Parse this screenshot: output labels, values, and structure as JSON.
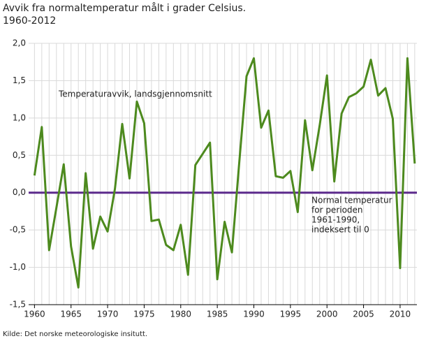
{
  "chart_data": {
    "type": "line",
    "title": "Avvik fra normaltemperatur målt i grader Celsius.",
    "subtitle": "1960-2012",
    "source": "Kilde: Det norske meteorologiske insitutt.",
    "annotations": [
      "Temperaturavvik, landsgjennomsnitt",
      "Normal temperatur",
      "for perioden",
      "1961-1990,",
      "indeksert til 0"
    ],
    "x": [
      1960,
      1961,
      1962,
      1963,
      1964,
      1965,
      1966,
      1967,
      1968,
      1969,
      1970,
      1971,
      1972,
      1973,
      1974,
      1975,
      1976,
      1977,
      1978,
      1979,
      1980,
      1981,
      1982,
      1983,
      1984,
      1985,
      1986,
      1987,
      1988,
      1989,
      1990,
      1991,
      1992,
      1993,
      1994,
      1995,
      1996,
      1997,
      1998,
      1999,
      2000,
      2001,
      2002,
      2003,
      2004,
      2005,
      2006,
      2007,
      2008,
      2009,
      2010,
      2011,
      2012
    ],
    "series": [
      {
        "name": "Temperaturavvik, landsgjennomsnitt",
        "color": "#4d8a1e",
        "values": [
          0.23,
          0.88,
          -0.77,
          -0.2,
          0.38,
          -0.72,
          -1.27,
          0.26,
          -0.75,
          -0.32,
          -0.52,
          0.05,
          0.92,
          0.19,
          1.22,
          0.93,
          -0.38,
          -0.36,
          -0.7,
          -0.77,
          -0.43,
          -1.1,
          0.37,
          0.52,
          0.67,
          -1.16,
          -0.39,
          -0.8,
          0.4,
          1.56,
          1.8,
          0.87,
          1.1,
          0.22,
          0.2,
          0.29,
          -0.26,
          0.97,
          0.3,
          0.9,
          1.57,
          0.15,
          1.06,
          1.28,
          1.33,
          1.42,
          1.78,
          1.3,
          1.4,
          0.99,
          -1.01,
          1.8,
          0.39
        ]
      }
    ],
    "reference_line": {
      "value": 0,
      "color": "#5c2a8c"
    },
    "xlim": [
      1959.2,
      2012.3
    ],
    "xticks": [
      1960,
      1965,
      1970,
      1975,
      1980,
      1985,
      1990,
      1995,
      2000,
      2005,
      2010
    ],
    "ylim": [
      -1.5,
      2.0
    ],
    "yticks": [
      {
        "value": -1.5,
        "label": "-1,5"
      },
      {
        "value": -1.0,
        "label": "-1,0"
      },
      {
        "value": -0.5,
        "label": "-0,5"
      },
      {
        "value": 0,
        "label": "0,0"
      },
      {
        "value": 0.5,
        "label": "0,5"
      },
      {
        "value": 1.0,
        "label": "1,0"
      },
      {
        "value": 1.5,
        "label": "1,5"
      },
      {
        "value": 2.0,
        "label": "2,0"
      }
    ],
    "grid": true
  }
}
